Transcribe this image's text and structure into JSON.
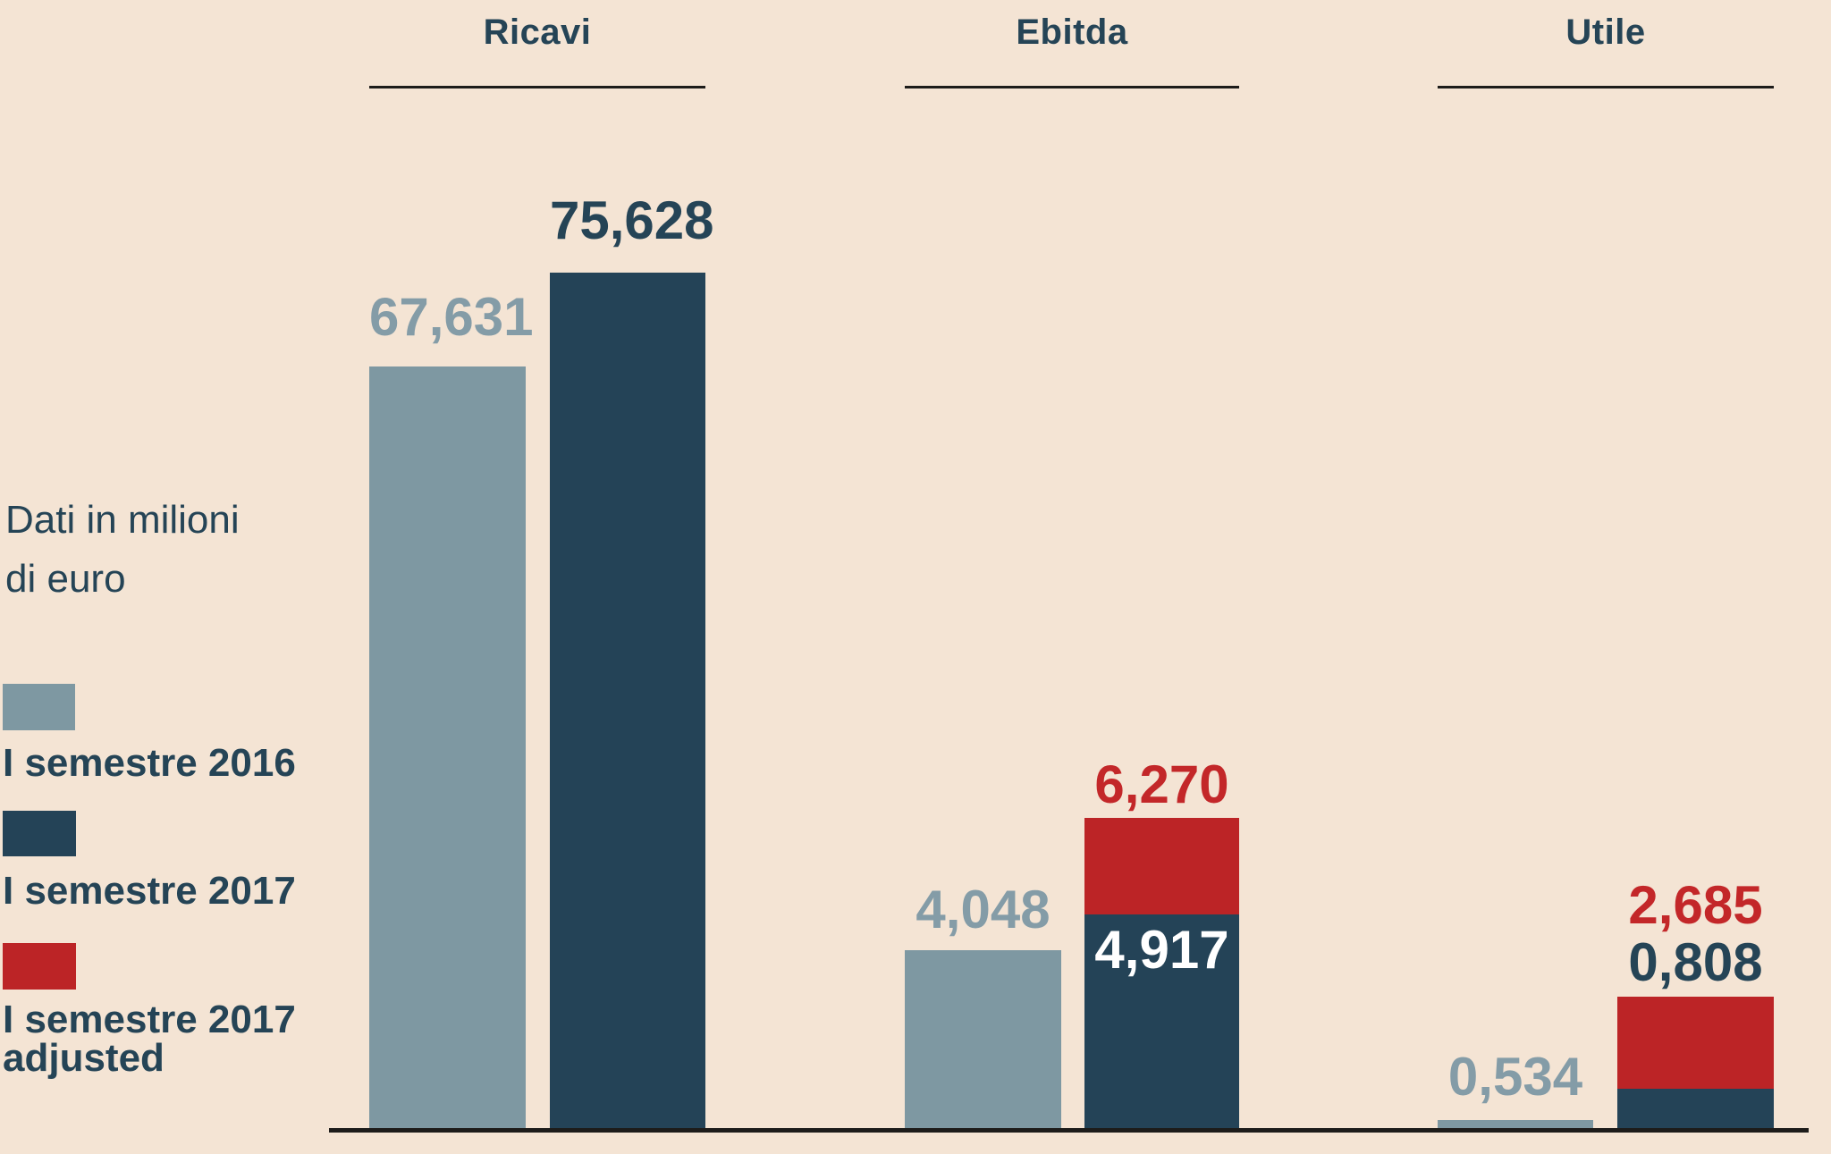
{
  "theme": {
    "background": "#f4e4d4",
    "series-2016": "#7e98a2",
    "series-2017": "#244357",
    "series-adjusted": "#bc2426",
    "label-2016": "#849ca7",
    "label-2017": "#254456",
    "label-adjusted": "#c32729",
    "label-on-bar": "#ffffff",
    "heading": "#254456",
    "rule": "#1d1c1a"
  },
  "note": {
    "line1": "Dati in milioni",
    "line2": "di euro"
  },
  "legend": {
    "items": [
      {
        "label": "I semestre 2016"
      },
      {
        "label": "I semestre 2017"
      },
      {
        "line1": "I semestre 2017",
        "line2": "adjusted"
      }
    ]
  },
  "chart_data": {
    "type": "bar",
    "unit_note": "Dati in milioni di euro",
    "categories": [
      "Ricavi",
      "Ebitda",
      "Utile"
    ],
    "series": [
      {
        "name": "I semestre 2016",
        "color": "#7e98a2",
        "values": [
          67.631,
          4.048,
          0.534
        ],
        "value_labels": [
          "67,631",
          "4,048",
          "0,534"
        ]
      },
      {
        "name": "I semestre 2017",
        "color": "#244357",
        "values": [
          75.628,
          4.917,
          0.808
        ],
        "value_labels": [
          "75,628",
          "4,917",
          "0,808"
        ]
      },
      {
        "name": "I semestre 2017 adjusted",
        "color": "#bc2426",
        "values": [
          null,
          6.27,
          2.685
        ],
        "value_labels": [
          null,
          "6,270",
          "2,685"
        ]
      }
    ],
    "layout": {
      "legend_position": "left",
      "grid": false,
      "baseline": true,
      "stacking": "2017 and 2017-adjusted bars drawn stacked in Ebitda and Utile groups",
      "scale_note": "bar heights are not drawn on a single shared scale"
    },
    "groups": [
      {
        "title": "Ricavi",
        "labels": {
          "s2016": "67,631",
          "s2017": "75,628"
        }
      },
      {
        "title": "Ebitda",
        "labels": {
          "s2016": "4,048",
          "s2017": "4,917",
          "adjusted": "6,270"
        }
      },
      {
        "title": "Utile",
        "labels": {
          "s2016": "0,534",
          "s2017": "0,808",
          "adjusted": "2,685"
        }
      }
    ]
  }
}
